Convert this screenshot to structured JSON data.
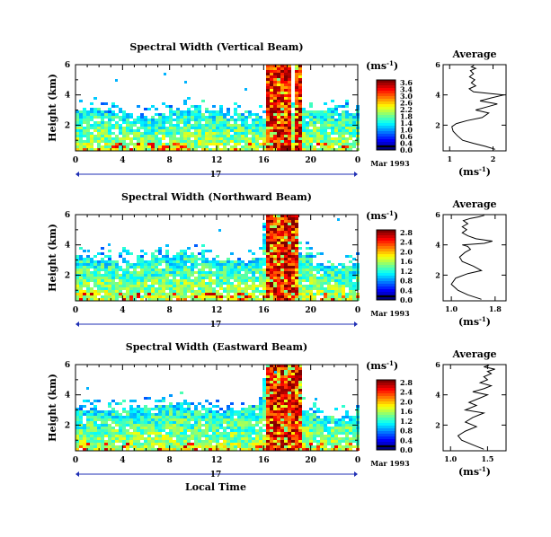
{
  "chart_data": [
    {
      "type": "heatmap",
      "title": "Spectral Width (Vertical Beam)",
      "ylabel": "Height (km)",
      "xlabel": "",
      "x_ticks": [
        "0",
        "4",
        "8",
        "12",
        "16",
        "20",
        "0"
      ],
      "y_ticks": [
        "2",
        "4",
        "6"
      ],
      "xlim": [
        0,
        24
      ],
      "ylim": [
        0.3,
        6
      ],
      "date_marker": "17",
      "date_label": "Mar 1993",
      "colorbar": {
        "unit_label": "(ms",
        "unit_sup": "-1",
        "unit_close": ")",
        "ticks": [
          "3.6",
          "3.4",
          "3.0",
          "2.6",
          "2.2",
          "1.8",
          "1.4",
          "1.0",
          "0.6",
          "0.4",
          "0.0"
        ]
      },
      "profile": {
        "title": "Average",
        "xlabel": "(ms",
        "xlabel_sup": "-1",
        "xlabel_close": ")",
        "x_ticks": [
          "1",
          "2"
        ],
        "xlim": [
          0.85,
          2.3
        ],
        "y_ticks": [
          "2",
          "4",
          "6"
        ],
        "ylim": [
          0.3,
          6
        ],
        "x": [
          2.05,
          1.82,
          1.55,
          1.3,
          1.18,
          1.08,
          1.05,
          1.15,
          1.4,
          1.75,
          1.9,
          1.6,
          1.85,
          2.1,
          1.7,
          1.95,
          2.25,
          1.55,
          1.45,
          1.6,
          1.5,
          1.58,
          1.46,
          1.55,
          1.48,
          1.6,
          1.5,
          1.56
        ],
        "y": [
          0.4,
          0.6,
          0.8,
          1.0,
          1.3,
          1.6,
          1.9,
          2.1,
          2.3,
          2.5,
          2.8,
          3.0,
          3.2,
          3.4,
          3.6,
          3.8,
          4.0,
          4.2,
          4.4,
          4.6,
          4.8,
          5.0,
          5.2,
          5.4,
          5.6,
          5.75,
          5.85,
          5.95
        ]
      }
    },
    {
      "type": "heatmap",
      "title": "Spectral Width (Northward Beam)",
      "ylabel": "Height (km)",
      "xlabel": "",
      "x_ticks": [
        "0",
        "4",
        "8",
        "12",
        "16",
        "20",
        "0"
      ],
      "y_ticks": [
        "2",
        "4",
        "6"
      ],
      "xlim": [
        0,
        24
      ],
      "ylim": [
        0.3,
        6
      ],
      "date_marker": "17",
      "date_label": "Mar 1993",
      "colorbar": {
        "unit_label": "(ms",
        "unit_sup": "-1",
        "unit_close": ")",
        "ticks": [
          "2.8",
          "2.4",
          "2.0",
          "1.6",
          "1.2",
          "0.8",
          "0.4",
          "0.0"
        ]
      },
      "profile": {
        "title": "Average",
        "xlabel": "(ms",
        "xlabel_sup": "-1",
        "xlabel_close": ")",
        "x_ticks": [
          "1.0",
          "1.8"
        ],
        "xlim": [
          0.85,
          2.0
        ],
        "y_ticks": [
          "2",
          "4",
          "6"
        ],
        "ylim": [
          0.3,
          6
        ],
        "x": [
          1.55,
          1.3,
          1.12,
          1.0,
          1.08,
          1.3,
          1.55,
          1.4,
          1.2,
          1.15,
          1.25,
          1.35,
          1.3,
          1.2,
          1.6,
          1.75,
          1.45,
          1.3,
          1.2,
          1.28,
          1.2,
          1.3,
          1.22,
          1.35,
          1.5,
          1.6
        ],
        "y": [
          0.4,
          0.7,
          1.0,
          1.4,
          1.8,
          2.1,
          2.3,
          2.6,
          2.9,
          3.2,
          3.5,
          3.7,
          3.9,
          4.0,
          4.1,
          4.25,
          4.4,
          4.6,
          4.8,
          5.0,
          5.2,
          5.4,
          5.6,
          5.75,
          5.85,
          5.95
        ]
      }
    },
    {
      "type": "heatmap",
      "title": "Spectral Width (Eastward Beam)",
      "ylabel": "Height (km)",
      "xlabel": "Local Time",
      "x_ticks": [
        "0",
        "4",
        "8",
        "12",
        "16",
        "20",
        "0"
      ],
      "y_ticks": [
        "2",
        "4",
        "6"
      ],
      "xlim": [
        0,
        24
      ],
      "ylim": [
        0.3,
        6
      ],
      "date_marker": "17",
      "date_label": "Mar 1993",
      "colorbar": {
        "unit_label": "(ms",
        "unit_sup": "-1",
        "unit_close": ")",
        "ticks": [
          "2.8",
          "2.4",
          "2.0",
          "1.6",
          "1.2",
          "0.8",
          "0.4",
          "0.0"
        ]
      },
      "profile": {
        "title": "Average",
        "xlabel": "(ms",
        "xlabel_sup": "-1",
        "xlabel_close": ")",
        "x_ticks": [
          "1.0",
          "1.5"
        ],
        "xlim": [
          0.9,
          1.75
        ],
        "y_ticks": [
          "2",
          "4",
          "6"
        ],
        "ylim": [
          0.3,
          6
        ],
        "x": [
          1.45,
          1.3,
          1.15,
          1.1,
          1.2,
          1.35,
          1.2,
          1.3,
          1.45,
          1.2,
          1.35,
          1.25,
          1.4,
          1.5,
          1.3,
          1.45,
          1.55,
          1.4,
          1.5,
          1.45,
          1.55,
          1.5,
          1.6,
          1.45,
          1.52
        ],
        "y": [
          0.4,
          0.7,
          1.0,
          1.3,
          1.6,
          1.9,
          2.2,
          2.5,
          2.8,
          3.0,
          3.3,
          3.5,
          3.8,
          4.0,
          4.2,
          4.4,
          4.6,
          4.8,
          5.0,
          5.2,
          5.4,
          5.55,
          5.7,
          5.85,
          5.95
        ]
      }
    }
  ]
}
